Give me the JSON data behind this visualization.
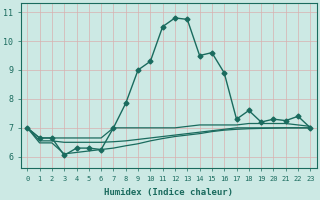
{
  "title": "",
  "xlabel": "Humidex (Indice chaleur)",
  "ylabel": "",
  "xlim": [
    -0.5,
    23.5
  ],
  "ylim": [
    5.6,
    11.3
  ],
  "xticks": [
    0,
    1,
    2,
    3,
    4,
    5,
    6,
    7,
    8,
    9,
    10,
    11,
    12,
    13,
    14,
    15,
    16,
    17,
    18,
    19,
    20,
    21,
    22,
    23
  ],
  "yticks": [
    6,
    7,
    8,
    9,
    10,
    11
  ],
  "bg_color": "#cce9e4",
  "line_color": "#1a6b5e",
  "grid_color": "#d8b0b0",
  "series": [
    {
      "x": [
        0,
        1,
        2,
        3,
        4,
        5,
        6,
        7,
        8,
        9,
        10,
        11,
        12,
        13,
        14,
        15,
        16,
        17,
        18,
        19,
        20,
        21,
        22,
        23
      ],
      "y": [
        7.0,
        6.65,
        6.65,
        6.05,
        6.3,
        6.3,
        6.25,
        7.0,
        7.85,
        9.0,
        9.3,
        10.5,
        10.8,
        10.75,
        9.5,
        9.6,
        8.9,
        7.3,
        7.6,
        7.2,
        7.3,
        7.25,
        7.4,
        7.0
      ],
      "marker": "D",
      "markersize": 2.5,
      "linewidth": 1.0
    },
    {
      "x": [
        0,
        1,
        2,
        3,
        4,
        5,
        6,
        7,
        8,
        9,
        10,
        11,
        12,
        13,
        14,
        15,
        16,
        17,
        18,
        19,
        20,
        21,
        22,
        23
      ],
      "y": [
        7.0,
        6.65,
        6.65,
        6.65,
        6.65,
        6.65,
        6.65,
        7.0,
        7.0,
        7.0,
        7.0,
        7.0,
        7.0,
        7.05,
        7.1,
        7.1,
        7.1,
        7.1,
        7.15,
        7.15,
        7.15,
        7.15,
        7.1,
        7.05
      ],
      "marker": null,
      "markersize": 0,
      "linewidth": 0.9
    },
    {
      "x": [
        0,
        1,
        2,
        3,
        4,
        5,
        6,
        7,
        8,
        9,
        10,
        11,
        12,
        13,
        14,
        15,
        16,
        17,
        18,
        19,
        20,
        21,
        22,
        23
      ],
      "y": [
        7.0,
        6.55,
        6.55,
        6.5,
        6.5,
        6.5,
        6.5,
        6.52,
        6.55,
        6.6,
        6.65,
        6.7,
        6.75,
        6.8,
        6.85,
        6.9,
        6.95,
        7.0,
        7.0,
        7.0,
        7.0,
        7.0,
        7.0,
        7.0
      ],
      "marker": null,
      "markersize": 0,
      "linewidth": 0.9
    },
    {
      "x": [
        0,
        1,
        2,
        3,
        4,
        5,
        6,
        7,
        8,
        9,
        10,
        11,
        12,
        13,
        14,
        15,
        16,
        17,
        18,
        19,
        20,
        21,
        22,
        23
      ],
      "y": [
        7.0,
        6.48,
        6.48,
        6.1,
        6.15,
        6.2,
        6.25,
        6.3,
        6.38,
        6.45,
        6.55,
        6.63,
        6.7,
        6.75,
        6.8,
        6.87,
        6.92,
        6.95,
        6.97,
        6.98,
        6.99,
        7.0,
        7.0,
        7.0
      ],
      "marker": null,
      "markersize": 0,
      "linewidth": 0.9
    }
  ]
}
